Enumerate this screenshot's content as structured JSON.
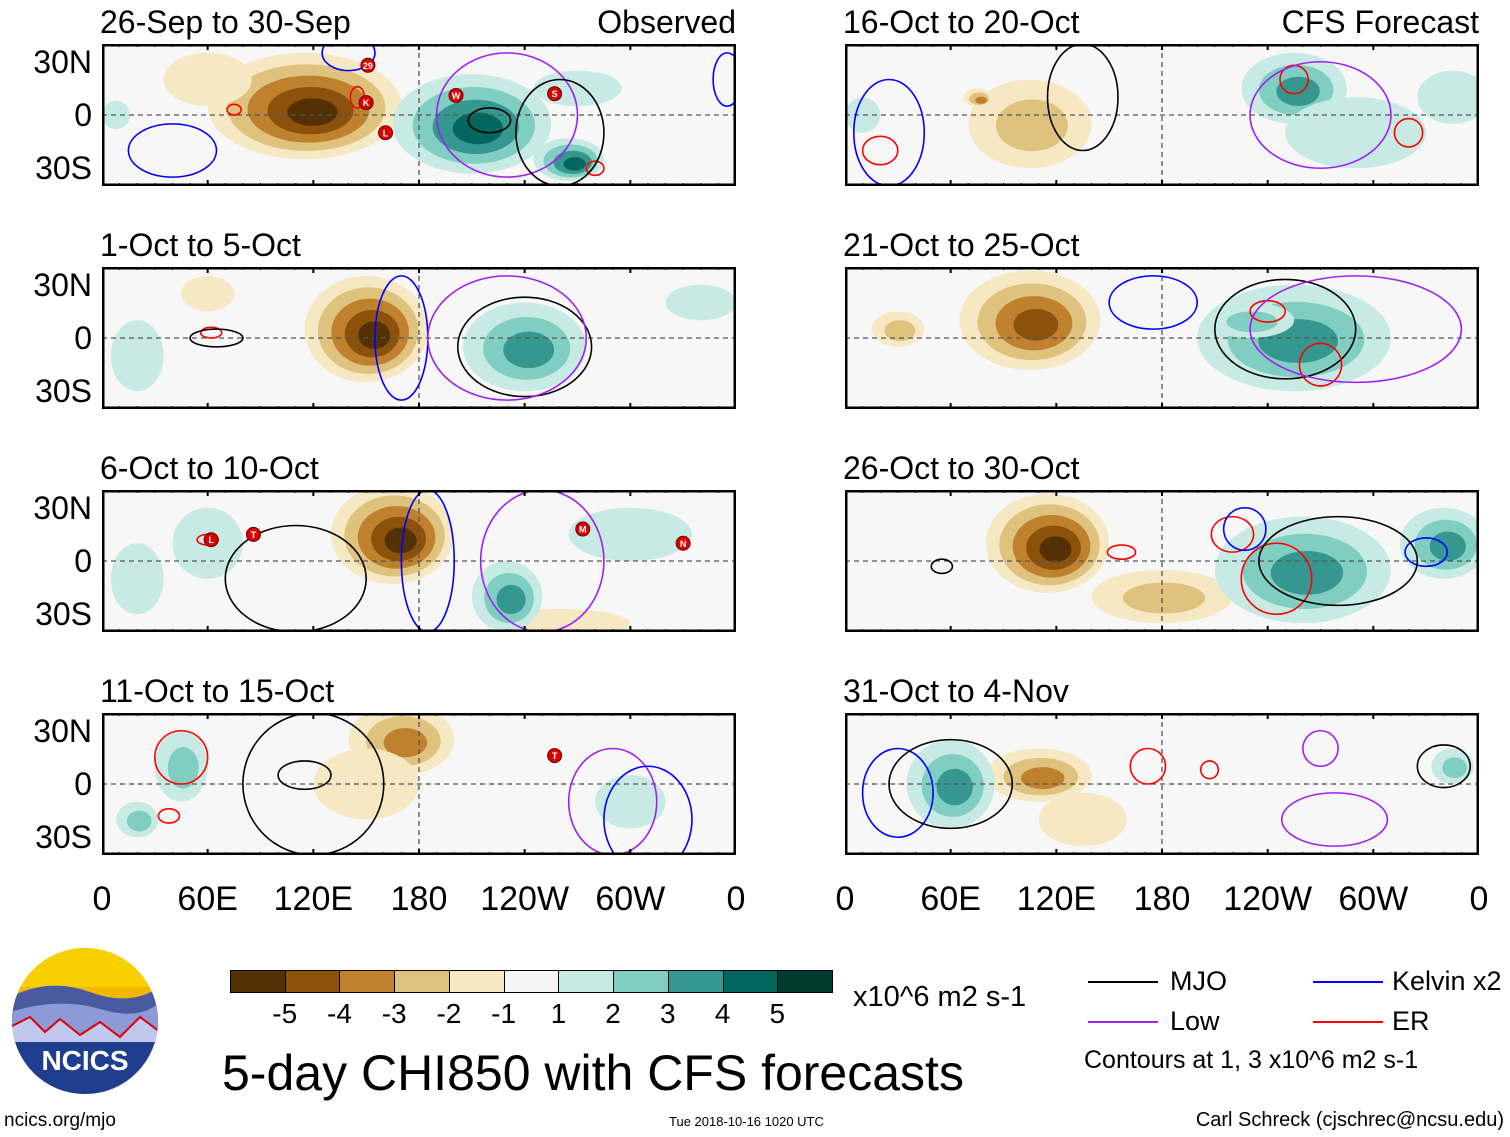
{
  "figure": {
    "title": "5-day CHI850 with CFS forecasts",
    "site": "ncics.org/mjo",
    "timestamp": "Tue 2018-10-16 1020 UTC",
    "author": "Carl Schreck (cjschrec@ncsu.edu)",
    "logo_text": "NCICS",
    "observed_label": "Observed",
    "forecast_label": "CFS Forecast"
  },
  "axes": {
    "lat_labels": [
      "30N",
      "0",
      "30S"
    ],
    "lon_labels": [
      "0",
      "60E",
      "120E",
      "180",
      "120W",
      "60W",
      "0"
    ]
  },
  "colorbar": {
    "levels": [
      -5,
      -4,
      -3,
      -2,
      -1,
      1,
      2,
      3,
      4,
      5
    ],
    "level_labels": [
      "-5",
      "-4",
      "-3",
      "-2",
      "-1",
      "1",
      "2",
      "3",
      "4",
      "5"
    ],
    "colors": [
      "#543005",
      "#8c510a",
      "#bf812d",
      "#dfc27d",
      "#f6e8c3",
      "#f5f5f5",
      "#c7eae5",
      "#80cdc1",
      "#35978f",
      "#01665e",
      "#003c30"
    ],
    "units": "x10^6 m2 s-1"
  },
  "legend": {
    "items": [
      {
        "label": "MJO",
        "color": "#000000"
      },
      {
        "label": "Kelvin x2",
        "color": "#0000ff"
      },
      {
        "label": "Low",
        "color": "#a020f0"
      },
      {
        "label": "ER",
        "color": "#ff0000"
      }
    ],
    "note": "Contours at 1, 3 x10^6 m2 s-1"
  },
  "chart_data": {
    "type": "heatmap",
    "variable": "5-day CHI850 anomaly",
    "xlim": [
      0,
      360
    ],
    "ylim": [
      -40,
      40
    ],
    "panels": [
      {
        "title": "26-Sep to 30-Sep",
        "kind": "Observed",
        "blobs": [
          [
            115,
            5,
            55,
            30,
            -5
          ],
          [
            60,
            20,
            25,
            15,
            -1
          ],
          [
            210,
            -5,
            45,
            28,
            4
          ],
          [
            265,
            -25,
            20,
            12,
            4
          ],
          [
            270,
            15,
            25,
            10,
            1
          ],
          [
            8,
            0,
            8,
            8,
            1
          ]
        ],
        "contours": [
          [
            "Kelvin",
            40,
            -20,
            25,
            15
          ],
          [
            "Kelvin",
            140,
            35,
            15,
            10
          ],
          [
            "ER",
            75,
            3,
            4,
            3
          ],
          [
            "ER",
            145,
            10,
            4,
            6
          ],
          [
            "ER",
            280,
            -30,
            5,
            4
          ],
          [
            "MJO",
            220,
            -3,
            12,
            7
          ],
          [
            "Low",
            230,
            0,
            40,
            35
          ],
          [
            "MJO",
            260,
            -10,
            25,
            30
          ],
          [
            "Kelvin",
            355,
            20,
            8,
            15
          ]
        ],
        "storms": [
          {
            "label": "29",
            "lon": 151,
            "lat": 28
          },
          {
            "label": "K",
            "lon": 150,
            "lat": 7
          },
          {
            "label": "L",
            "lon": 161,
            "lat": -10
          },
          {
            "label": "W",
            "lon": 201,
            "lat": 11
          },
          {
            "label": "S",
            "lon": 257,
            "lat": 12
          }
        ]
      },
      {
        "title": "1-Oct to 5-Oct",
        "kind": "Observed",
        "blobs": [
          [
            150,
            5,
            35,
            30,
            -5
          ],
          [
            60,
            25,
            15,
            10,
            -1
          ],
          [
            240,
            -5,
            35,
            25,
            3
          ],
          [
            340,
            20,
            20,
            10,
            1
          ],
          [
            20,
            -10,
            15,
            20,
            1
          ]
        ],
        "contours": [
          [
            "MJO",
            240,
            -5,
            38,
            28
          ],
          [
            "Kelvin",
            170,
            0,
            15,
            35
          ],
          [
            "ER",
            62,
            3,
            6,
            3
          ],
          [
            "MJO",
            65,
            0,
            15,
            5
          ],
          [
            "Low",
            230,
            0,
            45,
            35
          ]
        ],
        "storms": []
      },
      {
        "title": "6-Oct to 10-Oct",
        "kind": "Observed",
        "blobs": [
          [
            165,
            15,
            35,
            28,
            -5
          ],
          [
            260,
            -35,
            40,
            8,
            -1
          ],
          [
            230,
            -20,
            20,
            20,
            3
          ],
          [
            60,
            10,
            20,
            20,
            1
          ],
          [
            300,
            15,
            35,
            15,
            1
          ],
          [
            20,
            -10,
            15,
            20,
            1
          ]
        ],
        "contours": [
          [
            "Kelvin",
            185,
            0,
            15,
            40
          ],
          [
            "Low",
            250,
            0,
            35,
            40
          ],
          [
            "ER",
            60,
            12,
            6,
            3
          ],
          [
            "MJO",
            110,
            -10,
            40,
            30
          ]
        ],
        "storms": [
          {
            "label": "L",
            "lon": 62,
            "lat": 12
          },
          {
            "label": "T",
            "lon": 86,
            "lat": 15
          },
          {
            "label": "M",
            "lon": 273,
            "lat": 18
          },
          {
            "label": "N",
            "lon": 330,
            "lat": 10
          }
        ]
      },
      {
        "title": "11-Oct to 15-Oct",
        "kind": "Observed",
        "blobs": [
          [
            170,
            25,
            30,
            20,
            -3
          ],
          [
            150,
            0,
            30,
            20,
            -1
          ],
          [
            45,
            10,
            15,
            20,
            2
          ],
          [
            20,
            -20,
            12,
            10,
            2
          ],
          [
            300,
            -10,
            20,
            15,
            1
          ]
        ],
        "contours": [
          [
            "ER",
            45,
            15,
            15,
            15
          ],
          [
            "ER",
            38,
            -18,
            6,
            4
          ],
          [
            "MJO",
            115,
            5,
            15,
            8
          ],
          [
            "Low",
            290,
            -10,
            25,
            30
          ],
          [
            "Kelvin",
            310,
            -20,
            25,
            30
          ],
          [
            "MJO",
            120,
            0,
            40,
            40
          ]
        ],
        "storms": [
          {
            "label": "T",
            "lon": 257,
            "lat": 16
          }
        ]
      },
      {
        "title": "16-Oct to 20-Oct",
        "kind": "CFS Forecast",
        "blobs": [
          [
            105,
            -5,
            35,
            25,
            -2
          ],
          [
            75,
            10,
            8,
            5,
            -3
          ],
          [
            255,
            15,
            30,
            20,
            3
          ],
          [
            290,
            -10,
            40,
            20,
            1
          ],
          [
            345,
            10,
            20,
            15,
            1
          ],
          [
            10,
            0,
            10,
            10,
            1
          ]
        ],
        "contours": [
          [
            "ER",
            255,
            20,
            8,
            8
          ],
          [
            "ER",
            320,
            -10,
            8,
            8
          ],
          [
            "ER",
            20,
            -20,
            10,
            8
          ],
          [
            "Low",
            270,
            0,
            40,
            30
          ],
          [
            "MJO",
            135,
            10,
            20,
            30
          ],
          [
            "Kelvin",
            25,
            -10,
            20,
            30
          ]
        ],
        "storms": []
      },
      {
        "title": "21-Oct to 25-Oct",
        "kind": "CFS Forecast",
        "blobs": [
          [
            105,
            10,
            40,
            28,
            -4
          ],
          [
            30,
            5,
            15,
            10,
            -2
          ],
          [
            255,
            0,
            55,
            30,
            3
          ],
          [
            230,
            10,
            25,
            10,
            2
          ]
        ],
        "contours": [
          [
            "MJO",
            250,
            5,
            40,
            28
          ],
          [
            "ER",
            240,
            15,
            10,
            6
          ],
          [
            "ER",
            270,
            -15,
            12,
            12
          ],
          [
            "Low",
            290,
            5,
            60,
            30
          ],
          [
            "Kelvin",
            175,
            20,
            25,
            15
          ]
        ],
        "storms": []
      },
      {
        "title": "26-Oct to 30-Oct",
        "kind": "CFS Forecast",
        "blobs": [
          [
            115,
            10,
            35,
            28,
            -5
          ],
          [
            180,
            -20,
            40,
            15,
            -2
          ],
          [
            260,
            -5,
            50,
            30,
            3
          ],
          [
            340,
            10,
            25,
            20,
            3
          ]
        ],
        "contours": [
          [
            "ER",
            220,
            15,
            12,
            10
          ],
          [
            "ER",
            245,
            -10,
            20,
            20
          ],
          [
            "Kelvin",
            227,
            18,
            12,
            12
          ],
          [
            "Kelvin",
            330,
            5,
            12,
            8
          ],
          [
            "MJO",
            280,
            0,
            45,
            25
          ],
          [
            "MJO",
            55,
            -3,
            6,
            4
          ],
          [
            "ER",
            157,
            5,
            8,
            4
          ]
        ],
        "storms": []
      },
      {
        "title": "31-Oct to 4-Nov",
        "kind": "CFS Forecast",
        "blobs": [
          [
            110,
            5,
            30,
            15,
            -3
          ],
          [
            135,
            -20,
            25,
            15,
            -1
          ],
          [
            60,
            0,
            25,
            25,
            3
          ],
          [
            345,
            10,
            12,
            10,
            2
          ]
        ],
        "contours": [
          [
            "Kelvin",
            30,
            -5,
            20,
            25
          ],
          [
            "MJO",
            60,
            0,
            35,
            25
          ],
          [
            "ER",
            172,
            10,
            10,
            10
          ],
          [
            "ER",
            207,
            8,
            5,
            5
          ],
          [
            "Low",
            278,
            -20,
            30,
            15
          ],
          [
            "Low",
            270,
            20,
            10,
            10
          ],
          [
            "MJO",
            340,
            10,
            15,
            12
          ]
        ],
        "storms": []
      }
    ]
  }
}
